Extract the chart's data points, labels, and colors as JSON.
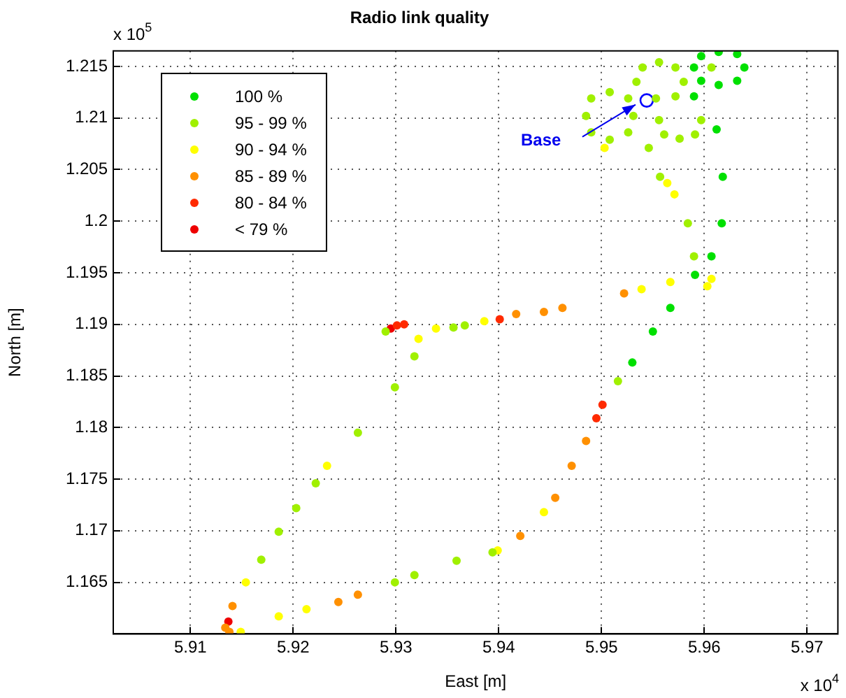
{
  "chart_data": {
    "type": "scatter",
    "title": "Radio link quality",
    "xlabel": "East [m]",
    "ylabel": "North [m]",
    "xlim": [
      5.9025,
      5.973
    ],
    "xticks": [
      5.91,
      5.92,
      5.93,
      5.94,
      5.95,
      5.96,
      5.97
    ],
    "ylim": [
      1.16,
      1.2165
    ],
    "yticks": [
      1.165,
      1.17,
      1.175,
      1.18,
      1.185,
      1.19,
      1.195,
      1.2,
      1.205,
      1.21,
      1.215
    ],
    "grid": true,
    "legend": "top left",
    "marker": "circle",
    "annotations": [
      "x 10$^{5}$",
      "x 10$^{4}$",
      {
        "text": "Base",
        "x": 5.9544,
        "y": 1.2117
      }
    ],
    "series": [
      {
        "name": "100 %",
        "color": "#00e000",
        "x": [
          5.959,
          5.9612,
          5.9618,
          5.9617,
          5.9607,
          5.9591,
          5.9567,
          5.955,
          5.953,
          5.9639,
          5.9632,
          5.9614,
          5.9597,
          5.959,
          5.9597,
          5.9614,
          5.9632
        ],
        "values": [
          1.2121,
          1.2089,
          1.2043,
          1.1998,
          1.1966,
          1.1948,
          1.1916,
          1.1893,
          1.1863,
          1.2149,
          1.2162,
          1.2164,
          1.216,
          1.2149,
          1.2136,
          1.2132,
          1.2136
        ]
      },
      {
        "name": "95 - 99 %",
        "color": "#a0f000",
        "x": [
          5.9485,
          5.949,
          5.9508,
          5.9526,
          5.9531,
          5.9526,
          5.9508,
          5.949,
          5.9534,
          5.954,
          5.9556,
          5.9572,
          5.9572,
          5.9597,
          5.9591,
          5.9576,
          5.9561,
          5.9556,
          5.9553,
          5.958,
          5.9607,
          5.9546,
          5.9557,
          5.9584,
          5.959,
          5.9367,
          5.9356,
          5.929,
          5.9318,
          5.9299,
          5.9263,
          5.9222,
          5.9203,
          5.9186,
          5.9169,
          5.9299,
          5.9318,
          5.9359,
          5.9394,
          5.9516
        ],
        "values": [
          1.2102,
          1.2119,
          1.2125,
          1.2119,
          1.2102,
          1.2086,
          1.2079,
          1.2086,
          1.2135,
          1.2149,
          1.2154,
          1.2149,
          1.2121,
          1.2098,
          1.2084,
          1.208,
          1.2084,
          1.2098,
          1.2119,
          1.2135,
          1.2149,
          1.2071,
          1.2043,
          1.1998,
          1.1966,
          1.1899,
          1.1897,
          1.1893,
          1.1869,
          1.1839,
          1.1795,
          1.1746,
          1.1722,
          1.1699,
          1.1672,
          1.165,
          1.1657,
          1.1671,
          1.1679,
          1.1845
        ]
      },
      {
        "name": "90 - 94 %",
        "color": "#ffff00",
        "x": [
          5.9322,
          5.9339,
          5.9386,
          5.9567,
          5.9539,
          5.9607,
          5.9603,
          5.9571,
          5.9564,
          5.9503,
          5.9444,
          5.9399,
          5.9186,
          5.9149,
          5.9213,
          5.9154,
          5.9233
        ],
        "values": [
          1.1886,
          1.1896,
          1.1903,
          1.1941,
          1.1934,
          1.1944,
          1.1937,
          1.2026,
          1.2037,
          1.2071,
          1.1718,
          1.1681,
          1.1617,
          1.1602,
          1.1624,
          1.165,
          1.1763
        ]
      },
      {
        "name": "85 - 89 %",
        "color": "#ff9000",
        "x": [
          5.9485,
          5.9471,
          5.9455,
          5.9421,
          5.9263,
          5.9244,
          5.9134,
          5.9141,
          5.9138,
          5.9417,
          5.9444,
          5.9462,
          5.9522
        ],
        "values": [
          1.1787,
          1.1763,
          1.1732,
          1.1695,
          1.1638,
          1.1631,
          1.1606,
          1.1627,
          1.1602,
          1.191,
          1.1912,
          1.1916,
          1.193
        ]
      },
      {
        "name": "80 - 84 %",
        "color": "#ff2a00",
        "x": [
          5.9501,
          5.9495,
          5.9301,
          5.9308,
          5.9401
        ],
        "values": [
          1.1822,
          1.1809,
          1.1899,
          1.19,
          1.1905
        ]
      },
      {
        "name": "< 79 %",
        "color": "#ee0000",
        "x": [
          5.9295,
          5.9137
        ],
        "values": [
          1.1896,
          1.1612
        ]
      },
      {
        "color": "#0000ff",
        "x": [
          5.9544
        ],
        "values": [
          1.2117
        ]
      }
    ]
  }
}
